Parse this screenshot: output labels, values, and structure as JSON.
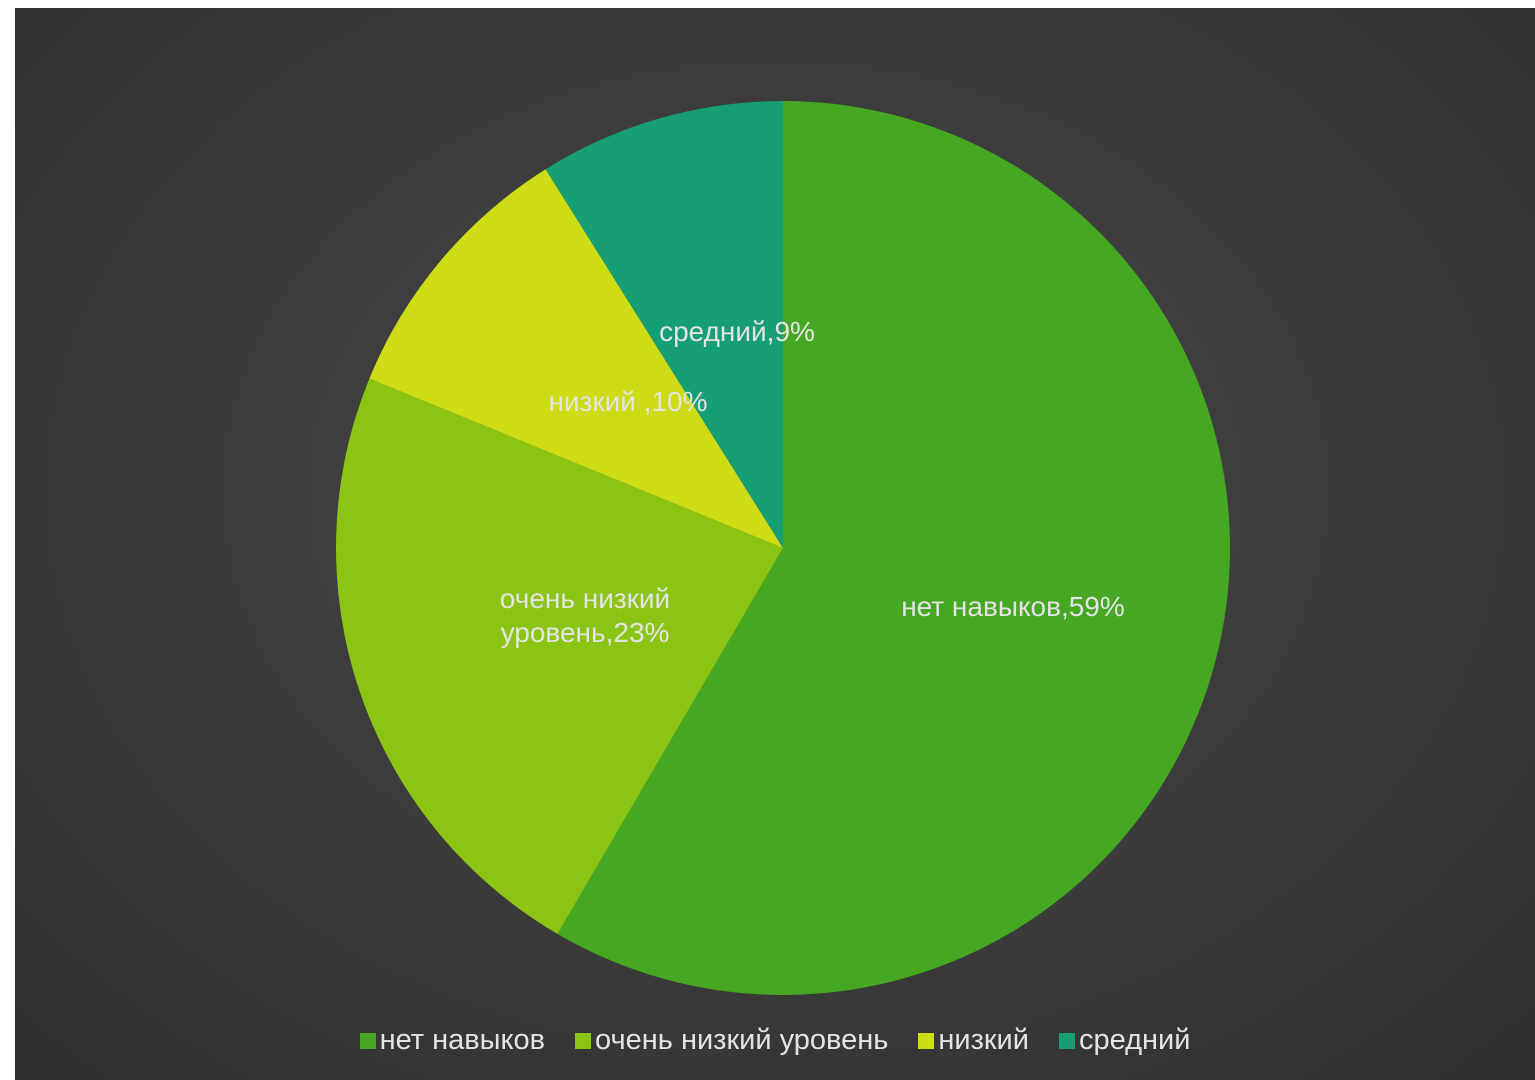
{
  "chart_data": {
    "type": "pie",
    "title": "",
    "categories": [
      "нет навыков",
      "очень низкий уровень",
      "низкий",
      "средний"
    ],
    "values": [
      59,
      23,
      10,
      9
    ],
    "unit": "%",
    "colors": [
      "#45a722",
      "#8bc412",
      "#cddc15",
      "#169e74"
    ],
    "data_labels": [
      "нет навыков,59%",
      "очень низкий уровень,23%",
      "низкий ,10%",
      "средний,9%"
    ],
    "legend": {
      "position": "bottom",
      "items": [
        "нет навыков",
        "очень низкий уровень",
        "низкий",
        "средний"
      ]
    },
    "background": "#3d3d3d",
    "label_color": "#e4e4e4"
  }
}
